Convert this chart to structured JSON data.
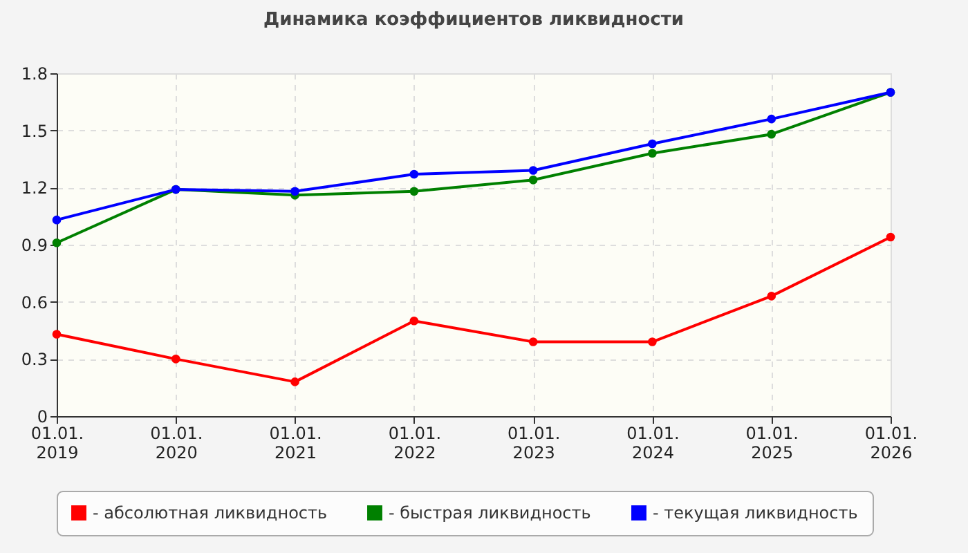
{
  "chart_data": {
    "type": "line",
    "title": "Динамика коэффициентов ликвидности",
    "categories": [
      "01.01.\n2019",
      "01.01.\n2020",
      "01.01.\n2021",
      "01.01.\n2022",
      "01.01.\n2023",
      "01.01.\n2024",
      "01.01.\n2025",
      "01.01.\n2026"
    ],
    "series": [
      {
        "name": "- абсолютная ликвидность",
        "color": "#ff0000",
        "values": [
          0.43,
          0.3,
          0.18,
          0.5,
          0.39,
          0.39,
          0.63,
          0.94
        ]
      },
      {
        "name": "- быстрая ликвидность",
        "color": "#008000",
        "values": [
          0.91,
          1.19,
          1.16,
          1.18,
          1.24,
          1.38,
          1.48,
          1.7
        ]
      },
      {
        "name": "- текущая ликвидность",
        "color": "#0000ff",
        "values": [
          1.03,
          1.19,
          1.18,
          1.27,
          1.29,
          1.43,
          1.56,
          1.7
        ]
      }
    ],
    "ylim": [
      0,
      1.8
    ],
    "yticks": [
      0,
      0.3,
      0.6,
      0.9,
      1.2,
      1.5,
      1.8
    ],
    "grid": true,
    "legend": "bottom",
    "marker": "circle",
    "line_style": "solid"
  }
}
